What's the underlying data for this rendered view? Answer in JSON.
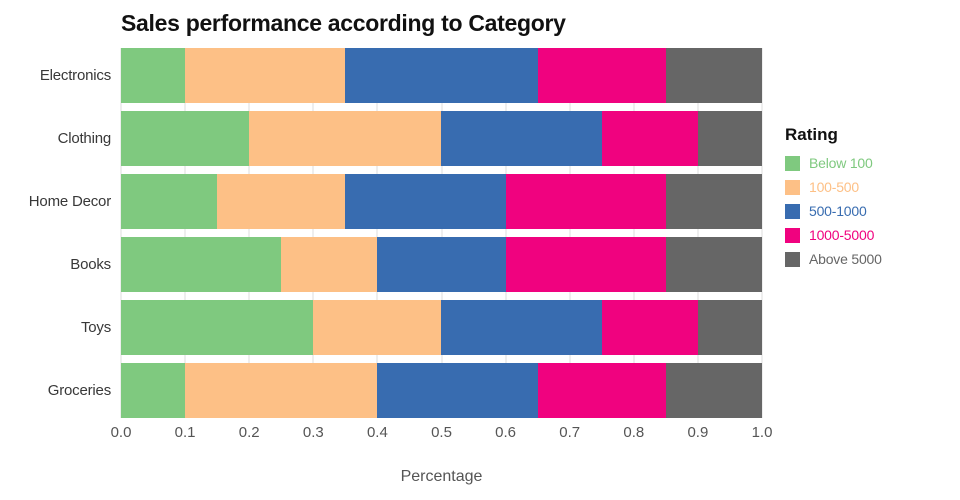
{
  "chart_data": {
    "type": "bar",
    "variant": "horizontal-stacked",
    "title": "Sales performance according to Category",
    "xlabel": "Percentage",
    "ylabel": "",
    "legend_title": "Rating",
    "legend_position": "right",
    "grid": true,
    "xlim": [
      0,
      1
    ],
    "xticks": [
      "0.0",
      "0.1",
      "0.2",
      "0.3",
      "0.4",
      "0.5",
      "0.6",
      "0.7",
      "0.8",
      "0.9",
      "1.0"
    ],
    "categories": [
      "Electronics",
      "Clothing",
      "Home Decor",
      "Books",
      "Toys",
      "Groceries"
    ],
    "series": [
      {
        "name": "Below 100",
        "color": "#7fc97f",
        "values": [
          0.1,
          0.2,
          0.15,
          0.25,
          0.3,
          0.1
        ]
      },
      {
        "name": "100-500",
        "color": "#fdc086",
        "values": [
          0.25,
          0.3,
          0.2,
          0.15,
          0.2,
          0.3
        ]
      },
      {
        "name": "500-1000",
        "color": "#386cb0",
        "values": [
          0.3,
          0.25,
          0.25,
          0.2,
          0.25,
          0.25
        ]
      },
      {
        "name": "1000-5000",
        "color": "#f0027f",
        "values": [
          0.2,
          0.15,
          0.25,
          0.25,
          0.15,
          0.2
        ]
      },
      {
        "name": "Above 5000",
        "color": "#666666",
        "values": [
          0.15,
          0.1,
          0.15,
          0.15,
          0.1,
          0.15
        ]
      }
    ],
    "colors": {
      "title_text": "#111111",
      "axis_text": "#555555",
      "category_text": "#383838",
      "gridline": "#dcdcdc",
      "background": "#ffffff"
    }
  }
}
